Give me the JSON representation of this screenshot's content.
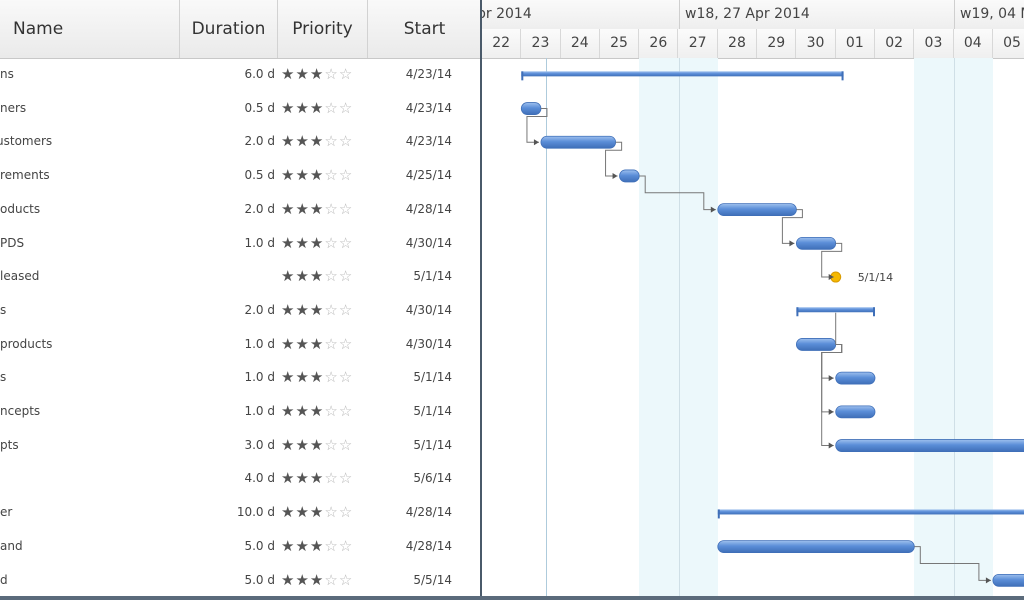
{
  "columns": {
    "name": "Name",
    "duration": "Duration",
    "priority": "Priority",
    "start": "Start"
  },
  "tasks": [
    {
      "name": "ns",
      "duration": "6.0 d",
      "priority": 3,
      "start": "4/23/14"
    },
    {
      "name": "ners",
      "duration": "0.5 d",
      "priority": 3,
      "start": "4/23/14"
    },
    {
      "name": "ustomers",
      "duration": "2.0 d",
      "priority": 3,
      "start": "4/23/14"
    },
    {
      "name": "rements",
      "duration": "0.5 d",
      "priority": 3,
      "start": "4/25/14"
    },
    {
      "name": "oducts",
      "duration": "2.0 d",
      "priority": 3,
      "start": "4/28/14"
    },
    {
      "name": "PDS",
      "duration": "1.0 d",
      "priority": 3,
      "start": "4/30/14"
    },
    {
      "name": "leased",
      "duration": "",
      "priority": 3,
      "start": "5/1/14"
    },
    {
      "name": "s",
      "duration": "2.0 d",
      "priority": 3,
      "start": "4/30/14"
    },
    {
      "name": "products",
      "duration": "1.0 d",
      "priority": 3,
      "start": "4/30/14"
    },
    {
      "name": "s",
      "duration": "1.0 d",
      "priority": 3,
      "start": "5/1/14"
    },
    {
      "name": "ncepts",
      "duration": "1.0 d",
      "priority": 3,
      "start": "5/1/14"
    },
    {
      "name": "pts",
      "duration": "3.0 d",
      "priority": 3,
      "start": "5/1/14"
    },
    {
      "name": "",
      "duration": "4.0 d",
      "priority": 3,
      "start": "5/6/14"
    },
    {
      "name": "er",
      "duration": "10.0 d",
      "priority": 3,
      "start": "4/28/14"
    },
    {
      "name": "and",
      "duration": "5.0 d",
      "priority": 3,
      "start": "4/28/14"
    },
    {
      "name": "d",
      "duration": "5.0 d",
      "priority": 3,
      "start": "5/5/14"
    }
  ],
  "timeline": {
    "weeks": [
      "pr 2014",
      "w18, 27 Apr 2014",
      "w19, 04 M"
    ],
    "days": [
      "22",
      "23",
      "24",
      "25",
      "26",
      "27",
      "28",
      "29",
      "30",
      "01",
      "02",
      "03",
      "04",
      "05"
    ],
    "milestone_label": "5/1/14"
  },
  "colors": {
    "bar": "#5b8ed8",
    "bar_light": "#9ec0ee",
    "bar_dark": "#3f6fb8",
    "milestone": "#f5b800",
    "weekend": "#ecf8fb",
    "today_line": "#aecbdc",
    "connector": "#777777"
  }
}
